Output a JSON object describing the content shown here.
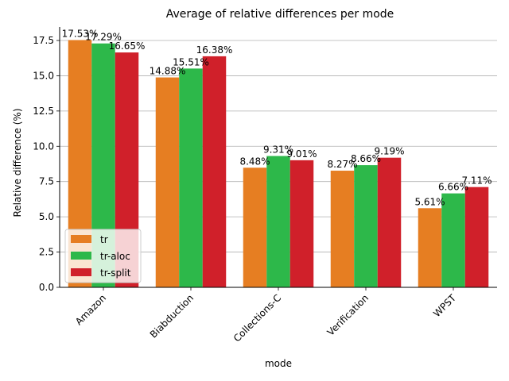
{
  "chart_data": {
    "type": "bar",
    "title": "Average of relative differences per mode",
    "xlabel": "mode",
    "ylabel": "Relative difference (%)",
    "categories": [
      "Amazon",
      "Biabduction",
      "Collections-C",
      "Verification",
      "WPST"
    ],
    "series": [
      {
        "name": "tr",
        "color": "#E67E22",
        "values": [
          17.53,
          14.88,
          8.48,
          8.27,
          5.61
        ],
        "labels": [
          "17.53%",
          "14.88%",
          "8.48%",
          "8.27%",
          "5.61%"
        ]
      },
      {
        "name": "tr-aloc",
        "color": "#2DB84A",
        "values": [
          17.29,
          15.51,
          9.31,
          8.66,
          6.66
        ],
        "labels": [
          "17.29%",
          "15.51%",
          "9.31%",
          "8.66%",
          "6.66%"
        ]
      },
      {
        "name": "tr-split",
        "color": "#D0202A",
        "values": [
          16.65,
          16.38,
          9.01,
          9.19,
          7.11
        ],
        "labels": [
          "16.65%",
          "16.38%",
          "9.01%",
          "9.19%",
          "7.11%"
        ]
      }
    ],
    "yticks": [
      "0.0",
      "2.5",
      "5.0",
      "7.5",
      "10.0",
      "12.5",
      "15.0",
      "17.5"
    ],
    "ylim": [
      0,
      18.4
    ],
    "grid": "horizontal",
    "legend_position": "lower-left"
  }
}
